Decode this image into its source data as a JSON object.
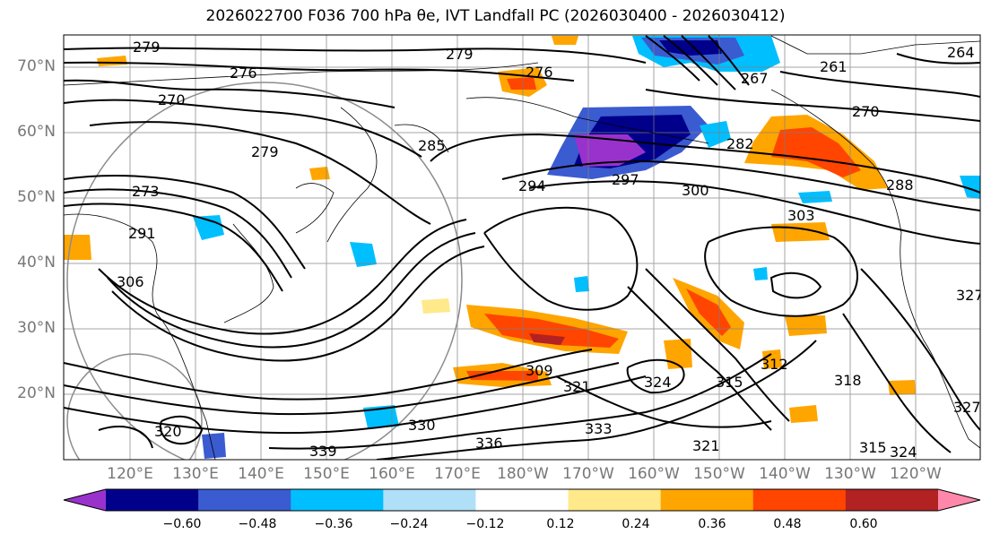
{
  "title": "2026022700 F036 700 hPa θe, IVT Landfall PC (2026030400 - 2026030412)",
  "lat_labels": [
    "70°N",
    "60°N",
    "50°N",
    "40°N",
    "30°N",
    "20°N"
  ],
  "lon_labels": [
    "120°E",
    "130°E",
    "140°E",
    "150°E",
    "160°E",
    "170°E",
    "180°W",
    "170°W",
    "160°W",
    "150°W",
    "140°W",
    "130°W",
    "120°W"
  ],
  "colorbar": {
    "ticks": [
      "−0.60",
      "−0.48",
      "−0.36",
      "−0.24",
      "−0.12",
      "0.12",
      "0.24",
      "0.36",
      "0.48",
      "0.60"
    ],
    "colors": [
      "#9932cc",
      "#00008b",
      "#3b5bd1",
      "#00bfff",
      "#b0e0f8",
      "#ffffff",
      "#ffe98a",
      "#ffa500",
      "#ff4500",
      "#b22222",
      "#ff88aa"
    ]
  },
  "contour_labels": [
    "279",
    "276",
    "270",
    "279",
    "276",
    "267",
    "261",
    "264",
    "270",
    "285",
    "282",
    "279",
    "273",
    "291",
    "294",
    "297",
    "300",
    "288",
    "303",
    "306",
    "309",
    "321",
    "324",
    "315",
    "312",
    "318",
    "327",
    "330",
    "336",
    "339",
    "333",
    "320",
    "327",
    "324",
    "315",
    "321"
  ]
}
